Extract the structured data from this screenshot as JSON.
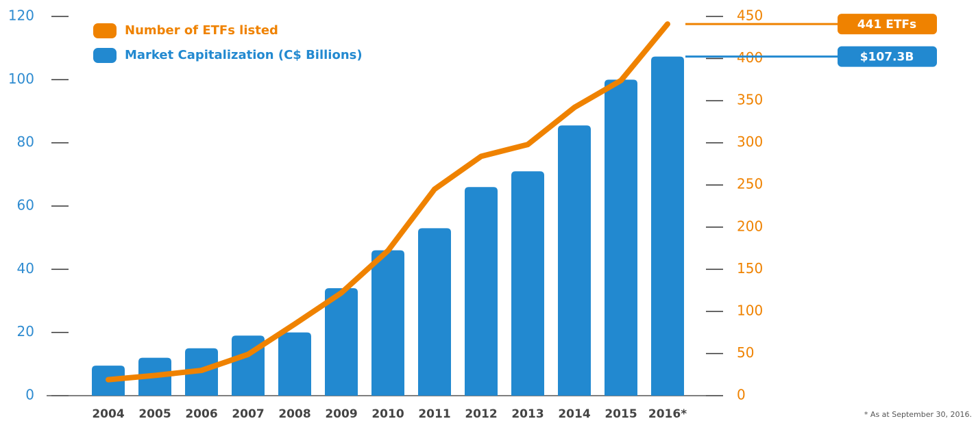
{
  "chart_data": {
    "type": "bar-line",
    "categories": [
      "2004",
      "2005",
      "2006",
      "2007",
      "2008",
      "2009",
      "2010",
      "2011",
      "2012",
      "2013",
      "2014",
      "2015",
      "2016*"
    ],
    "series": [
      {
        "name": "Number of ETFs listed",
        "color": "#ef8200",
        "type": "line",
        "axis": "y2",
        "values": [
          19,
          24,
          30,
          49,
          85,
          122,
          172,
          245,
          284,
          298,
          342,
          374,
          441
        ]
      },
      {
        "name": "Market Capitalization (C$ Billions)",
        "color": "#2289d0",
        "type": "bar",
        "axis": "y",
        "values": [
          9.5,
          12,
          15,
          19,
          20,
          34,
          46,
          53,
          66,
          71,
          85.5,
          100,
          107.3
        ]
      }
    ],
    "annotations": [
      {
        "text": "441 ETFs",
        "series": 0
      },
      {
        "text": "$107.3B",
        "series": 1
      }
    ],
    "ylim": [
      0,
      120
    ],
    "yticks": [
      0,
      20,
      40,
      60,
      80,
      100,
      120
    ],
    "y2lim": [
      0,
      450
    ],
    "y2ticks": [
      0,
      50,
      100,
      150,
      200,
      250,
      300,
      350,
      400,
      450
    ],
    "y_color": "#2e8bd0",
    "y2_color": "#ef8200",
    "footnote": "* As at September 30, 2016."
  }
}
